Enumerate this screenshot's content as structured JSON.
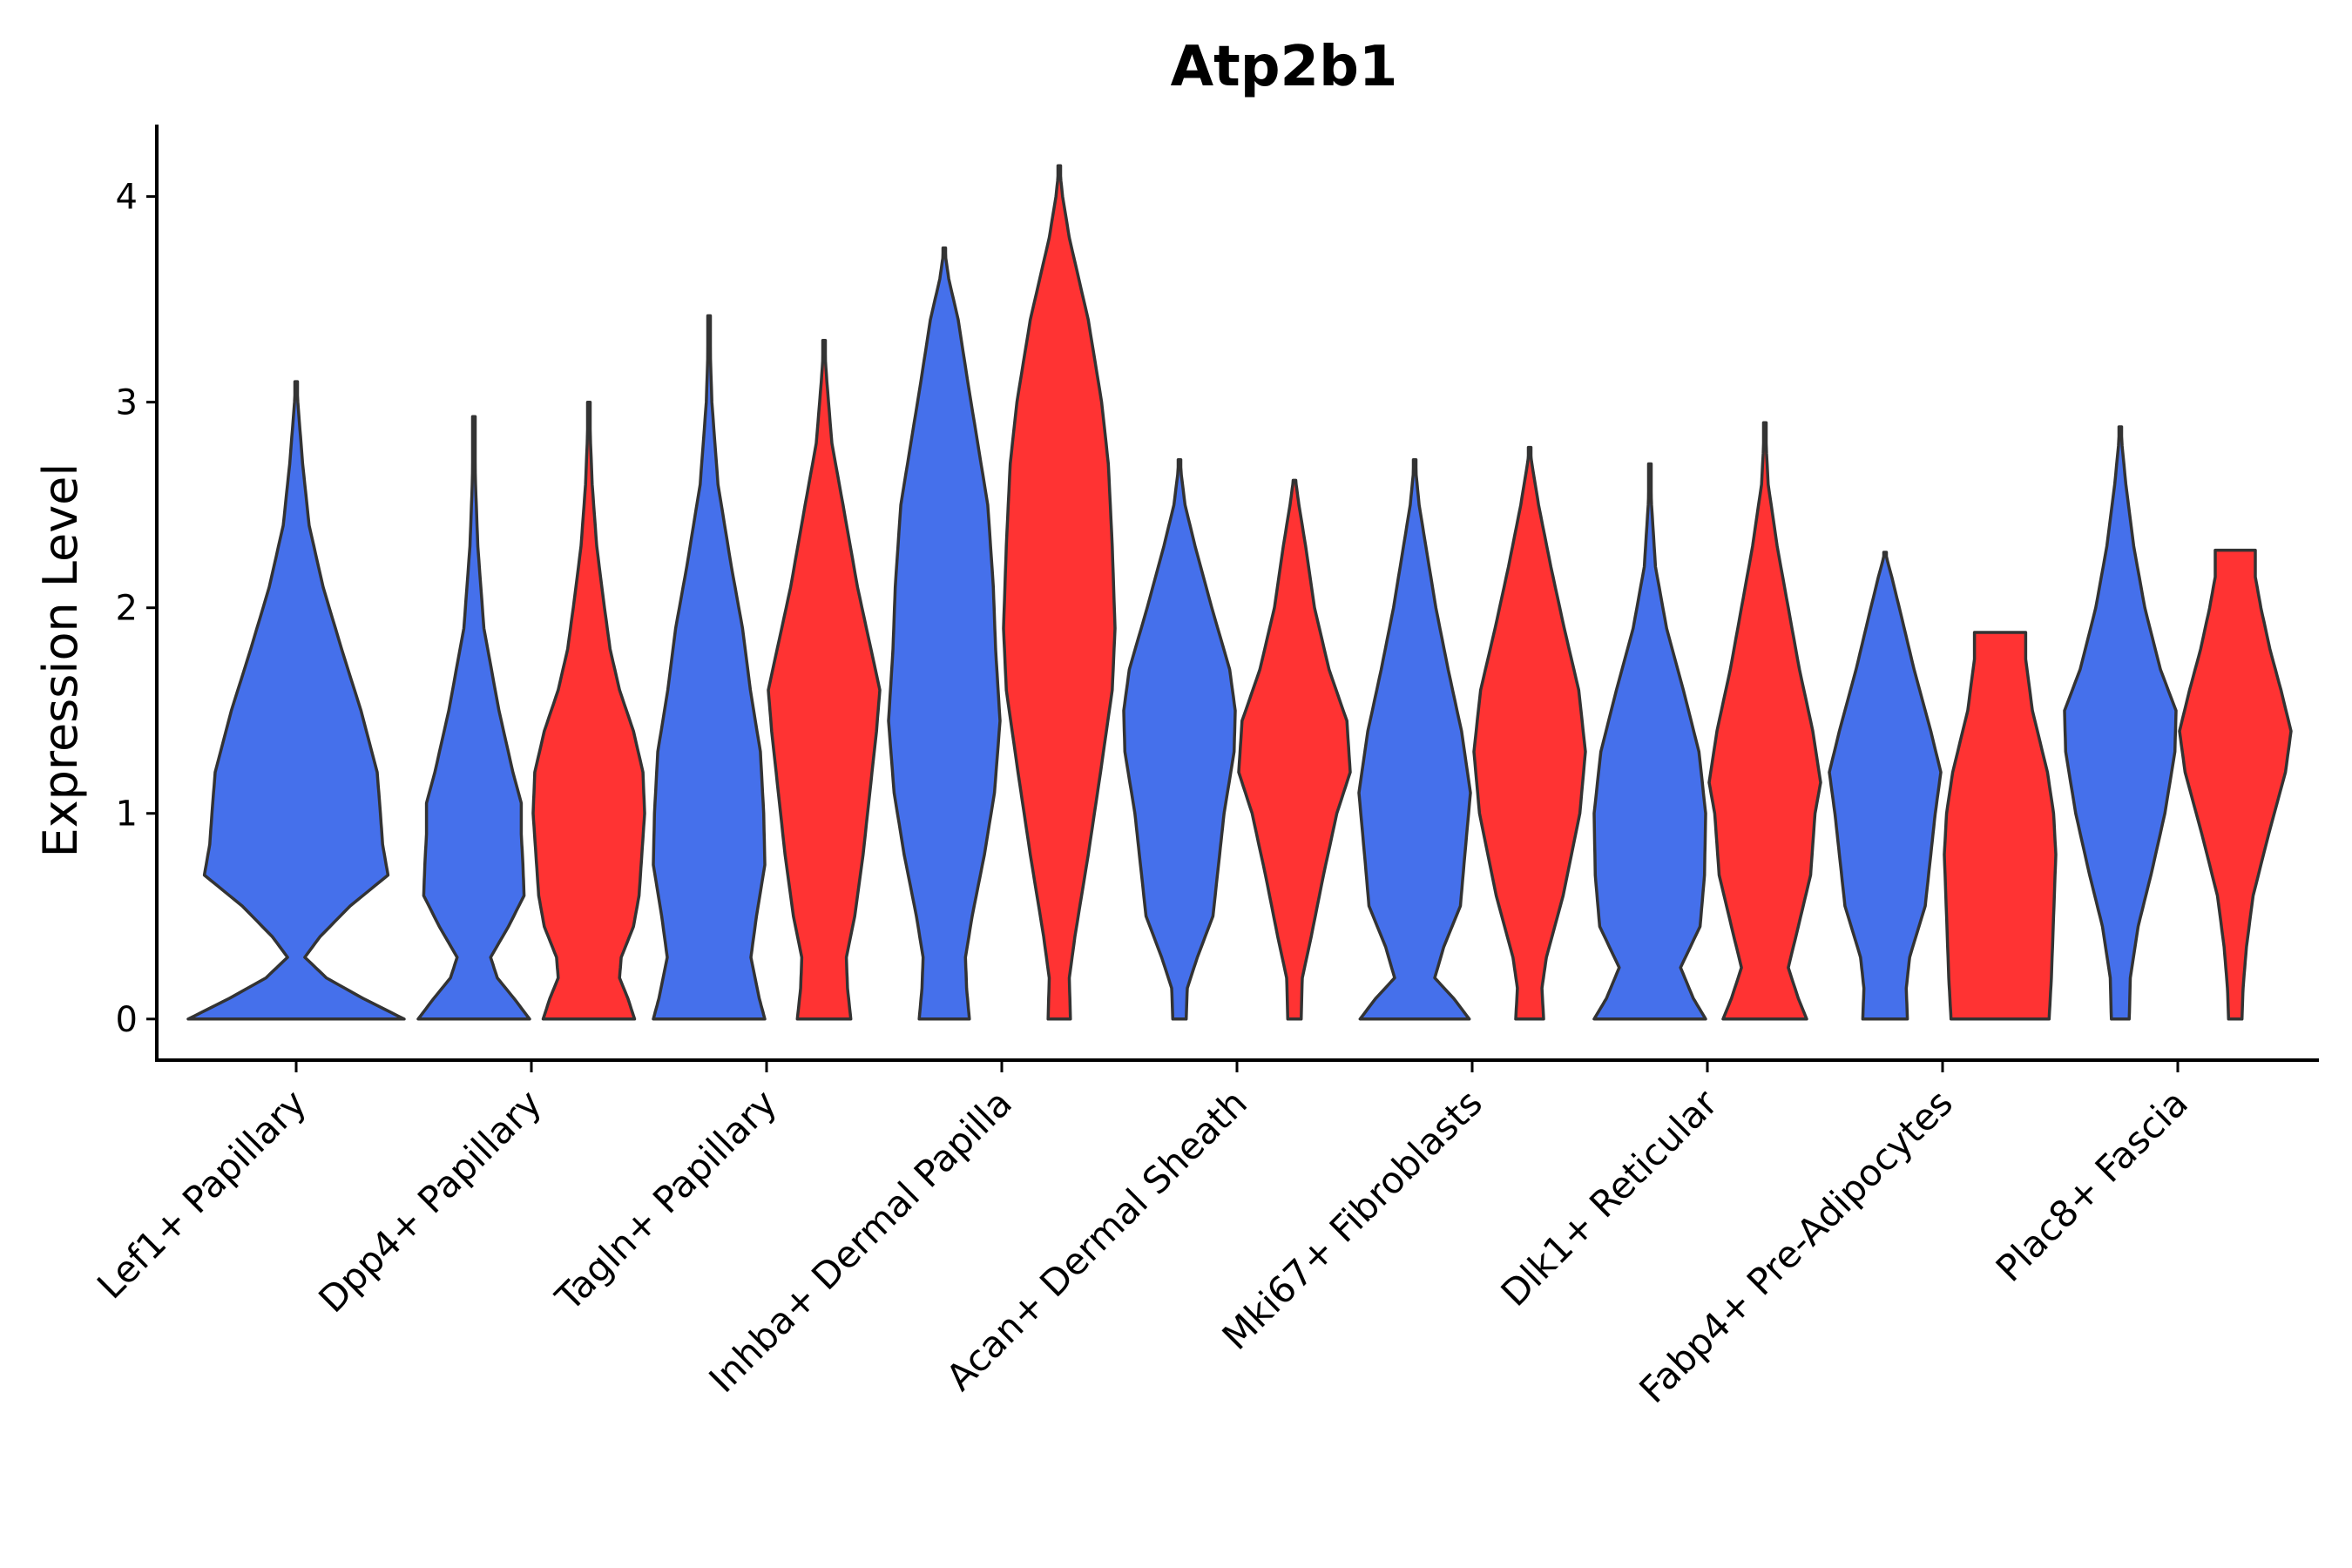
{
  "chart_data": {
    "type": "violin",
    "title": "Atp2b1",
    "xlabel": "",
    "ylabel": "Expression Level",
    "ylim": [
      -0.2,
      4.35
    ],
    "yticks": [
      0,
      1,
      2,
      3,
      4
    ],
    "grid": false,
    "legend": "none",
    "colors": {
      "group_a": "#4570EB",
      "group_b": "#FF3333",
      "outline": "#333333"
    },
    "categories": [
      "Lef1+ Papillary",
      "Dpp4+ Papillary",
      "Tagln+ Papillary",
      "Inhba+ Dermal Papilla",
      "Acan+ Dermal Sheath",
      "Mki67+ Fibroblasts",
      "Dlk1+ Reticular",
      "Fabp4+ Pre-Adipocytes",
      "Plac8+ Fascia"
    ],
    "violins": [
      {
        "category": "Lef1+ Papillary",
        "group": "group_a",
        "max": 3.1,
        "profile": [
          [
            0,
            1.0
          ],
          [
            0.1,
            0.62
          ],
          [
            0.2,
            0.28
          ],
          [
            0.3,
            0.08
          ],
          [
            0.4,
            0.22
          ],
          [
            0.55,
            0.5
          ],
          [
            0.7,
            0.85
          ],
          [
            0.85,
            0.8
          ],
          [
            1.0,
            0.78
          ],
          [
            1.2,
            0.75
          ],
          [
            1.5,
            0.6
          ],
          [
            1.8,
            0.42
          ],
          [
            2.1,
            0.25
          ],
          [
            2.4,
            0.12
          ],
          [
            2.7,
            0.06
          ],
          [
            2.9,
            0.03
          ],
          [
            3.1,
            0.0
          ]
        ]
      },
      {
        "category": "Dpp4+ Papillary",
        "group": "group_a",
        "max": 2.93,
        "profile": [
          [
            0,
            1.0
          ],
          [
            0.1,
            0.72
          ],
          [
            0.2,
            0.42
          ],
          [
            0.3,
            0.3
          ],
          [
            0.45,
            0.62
          ],
          [
            0.6,
            0.9
          ],
          [
            0.75,
            0.88
          ],
          [
            0.9,
            0.85
          ],
          [
            1.05,
            0.85
          ],
          [
            1.2,
            0.7
          ],
          [
            1.5,
            0.45
          ],
          [
            1.9,
            0.18
          ],
          [
            2.3,
            0.07
          ],
          [
            2.6,
            0.03
          ],
          [
            2.93,
            0.0
          ]
        ]
      },
      {
        "category": "Dpp4+ Papillary",
        "group": "group_b",
        "max": 3.0,
        "profile": [
          [
            0,
            0.82
          ],
          [
            0.1,
            0.7
          ],
          [
            0.2,
            0.55
          ],
          [
            0.3,
            0.58
          ],
          [
            0.45,
            0.8
          ],
          [
            0.6,
            0.9
          ],
          [
            0.8,
            0.95
          ],
          [
            1.0,
            1.0
          ],
          [
            1.2,
            0.97
          ],
          [
            1.4,
            0.8
          ],
          [
            1.6,
            0.55
          ],
          [
            1.8,
            0.38
          ],
          [
            2.0,
            0.28
          ],
          [
            2.3,
            0.14
          ],
          [
            2.6,
            0.06
          ],
          [
            3.0,
            0.0
          ]
        ]
      },
      {
        "category": "Tagln+ Papillary",
        "group": "group_a",
        "max": 3.42,
        "profile": [
          [
            0,
            1.0
          ],
          [
            0.1,
            0.9
          ],
          [
            0.3,
            0.75
          ],
          [
            0.5,
            0.85
          ],
          [
            0.75,
            1.0
          ],
          [
            1.0,
            0.98
          ],
          [
            1.3,
            0.92
          ],
          [
            1.6,
            0.74
          ],
          [
            1.9,
            0.6
          ],
          [
            2.2,
            0.4
          ],
          [
            2.6,
            0.16
          ],
          [
            3.0,
            0.05
          ],
          [
            3.42,
            0.0
          ]
        ]
      },
      {
        "category": "Tagln+ Papillary",
        "group": "group_b",
        "max": 3.3,
        "profile": [
          [
            0,
            0.48
          ],
          [
            0.15,
            0.42
          ],
          [
            0.3,
            0.4
          ],
          [
            0.5,
            0.55
          ],
          [
            0.8,
            0.7
          ],
          [
            1.1,
            0.82
          ],
          [
            1.4,
            0.94
          ],
          [
            1.6,
            1.0
          ],
          [
            1.8,
            0.84
          ],
          [
            2.1,
            0.6
          ],
          [
            2.5,
            0.34
          ],
          [
            2.8,
            0.14
          ],
          [
            3.1,
            0.05
          ],
          [
            3.3,
            0.0
          ]
        ]
      },
      {
        "category": "Inhba+ Dermal Papilla",
        "group": "group_a",
        "max": 3.75,
        "profile": [
          [
            0,
            0.45
          ],
          [
            0.15,
            0.4
          ],
          [
            0.3,
            0.38
          ],
          [
            0.5,
            0.5
          ],
          [
            0.8,
            0.72
          ],
          [
            1.1,
            0.9
          ],
          [
            1.45,
            1.0
          ],
          [
            1.8,
            0.92
          ],
          [
            2.1,
            0.88
          ],
          [
            2.5,
            0.78
          ],
          [
            2.8,
            0.6
          ],
          [
            3.1,
            0.42
          ],
          [
            3.4,
            0.25
          ],
          [
            3.6,
            0.08
          ],
          [
            3.75,
            0.0
          ]
        ]
      },
      {
        "category": "Inhba+ Dermal Papilla",
        "group": "group_b",
        "max": 4.15,
        "profile": [
          [
            0,
            0.2
          ],
          [
            0.2,
            0.18
          ],
          [
            0.4,
            0.28
          ],
          [
            0.8,
            0.52
          ],
          [
            1.2,
            0.74
          ],
          [
            1.6,
            0.95
          ],
          [
            1.9,
            1.0
          ],
          [
            2.3,
            0.95
          ],
          [
            2.7,
            0.88
          ],
          [
            3.0,
            0.76
          ],
          [
            3.4,
            0.52
          ],
          [
            3.8,
            0.18
          ],
          [
            4.0,
            0.06
          ],
          [
            4.15,
            0.0
          ]
        ]
      },
      {
        "category": "Acan+ Dermal Sheath",
        "group": "group_a",
        "max": 2.72,
        "profile": [
          [
            0,
            0.12
          ],
          [
            0.15,
            0.14
          ],
          [
            0.3,
            0.32
          ],
          [
            0.5,
            0.6
          ],
          [
            0.8,
            0.72
          ],
          [
            1.0,
            0.8
          ],
          [
            1.3,
            0.98
          ],
          [
            1.5,
            1.0
          ],
          [
            1.7,
            0.9
          ],
          [
            2.0,
            0.58
          ],
          [
            2.3,
            0.28
          ],
          [
            2.5,
            0.1
          ],
          [
            2.72,
            0.0
          ]
        ]
      },
      {
        "category": "Acan+ Dermal Sheath",
        "group": "group_b",
        "max": 2.62,
        "profile": [
          [
            0,
            0.12
          ],
          [
            0.2,
            0.14
          ],
          [
            0.4,
            0.3
          ],
          [
            0.7,
            0.52
          ],
          [
            1.0,
            0.76
          ],
          [
            1.2,
            1.0
          ],
          [
            1.45,
            0.94
          ],
          [
            1.7,
            0.62
          ],
          [
            2.0,
            0.36
          ],
          [
            2.3,
            0.2
          ],
          [
            2.5,
            0.08
          ],
          [
            2.62,
            0.02
          ]
        ]
      },
      {
        "category": "Mki67+ Fibroblasts",
        "group": "group_a",
        "max": 2.72,
        "profile": [
          [
            0,
            0.98
          ],
          [
            0.1,
            0.7
          ],
          [
            0.2,
            0.36
          ],
          [
            0.35,
            0.52
          ],
          [
            0.55,
            0.82
          ],
          [
            0.8,
            0.9
          ],
          [
            1.1,
            1.0
          ],
          [
            1.4,
            0.84
          ],
          [
            1.7,
            0.6
          ],
          [
            2.0,
            0.38
          ],
          [
            2.3,
            0.2
          ],
          [
            2.5,
            0.08
          ],
          [
            2.72,
            0.0
          ]
        ]
      },
      {
        "category": "Mki67+ Fibroblasts",
        "group": "group_b",
        "max": 2.78,
        "profile": [
          [
            0,
            0.25
          ],
          [
            0.15,
            0.22
          ],
          [
            0.3,
            0.3
          ],
          [
            0.6,
            0.6
          ],
          [
            1.0,
            0.9
          ],
          [
            1.3,
            1.0
          ],
          [
            1.6,
            0.88
          ],
          [
            1.9,
            0.62
          ],
          [
            2.2,
            0.38
          ],
          [
            2.5,
            0.16
          ],
          [
            2.7,
            0.04
          ],
          [
            2.78,
            0.0
          ]
        ]
      },
      {
        "category": "Dlk1+ Reticular",
        "group": "group_a",
        "max": 2.7,
        "profile": [
          [
            0,
            1.0
          ],
          [
            0.1,
            0.78
          ],
          [
            0.25,
            0.55
          ],
          [
            0.45,
            0.9
          ],
          [
            0.7,
            0.98
          ],
          [
            1.0,
            1.0
          ],
          [
            1.3,
            0.88
          ],
          [
            1.6,
            0.6
          ],
          [
            1.9,
            0.3
          ],
          [
            2.2,
            0.1
          ],
          [
            2.5,
            0.03
          ],
          [
            2.7,
            0.0
          ]
        ]
      },
      {
        "category": "Dlk1+ Reticular",
        "group": "group_b",
        "max": 2.9,
        "profile": [
          [
            0,
            0.75
          ],
          [
            0.1,
            0.6
          ],
          [
            0.25,
            0.42
          ],
          [
            0.45,
            0.6
          ],
          [
            0.7,
            0.82
          ],
          [
            1.0,
            0.9
          ],
          [
            1.15,
            1.0
          ],
          [
            1.4,
            0.86
          ],
          [
            1.7,
            0.62
          ],
          [
            2.0,
            0.42
          ],
          [
            2.3,
            0.22
          ],
          [
            2.6,
            0.06
          ],
          [
            2.9,
            0.0
          ]
        ]
      },
      {
        "category": "Fabp4+ Pre-Adipocytes",
        "group": "group_a",
        "max": 2.27,
        "profile": [
          [
            0,
            0.4
          ],
          [
            0.15,
            0.38
          ],
          [
            0.3,
            0.44
          ],
          [
            0.55,
            0.72
          ],
          [
            0.8,
            0.82
          ],
          [
            1.0,
            0.9
          ],
          [
            1.2,
            1.0
          ],
          [
            1.4,
            0.82
          ],
          [
            1.7,
            0.52
          ],
          [
            1.95,
            0.3
          ],
          [
            2.15,
            0.12
          ],
          [
            2.27,
            0.0
          ]
        ]
      },
      {
        "category": "Fabp4+ Pre-Adipocytes",
        "group": "group_b",
        "max": 1.88,
        "profile": [
          [
            0,
            0.88
          ],
          [
            0.2,
            0.92
          ],
          [
            0.5,
            0.96
          ],
          [
            0.8,
            1.0
          ],
          [
            1.0,
            0.96
          ],
          [
            1.2,
            0.85
          ],
          [
            1.5,
            0.58
          ],
          [
            1.75,
            0.46
          ],
          [
            1.88,
            0.46
          ]
        ]
      },
      {
        "category": "Plac8+ Fascia",
        "group": "group_a",
        "max": 2.88,
        "profile": [
          [
            0,
            0.16
          ],
          [
            0.2,
            0.18
          ],
          [
            0.45,
            0.32
          ],
          [
            0.7,
            0.55
          ],
          [
            1.0,
            0.8
          ],
          [
            1.3,
            0.98
          ],
          [
            1.5,
            1.0
          ],
          [
            1.7,
            0.72
          ],
          [
            2.0,
            0.44
          ],
          [
            2.3,
            0.24
          ],
          [
            2.6,
            0.1
          ],
          [
            2.88,
            0.0
          ]
        ]
      },
      {
        "category": "Plac8+ Fascia",
        "group": "group_b",
        "max": 2.28,
        "profile": [
          [
            0,
            0.12
          ],
          [
            0.15,
            0.14
          ],
          [
            0.35,
            0.2
          ],
          [
            0.6,
            0.32
          ],
          [
            0.9,
            0.6
          ],
          [
            1.2,
            0.9
          ],
          [
            1.4,
            1.0
          ],
          [
            1.6,
            0.82
          ],
          [
            1.8,
            0.62
          ],
          [
            2.0,
            0.46
          ],
          [
            2.15,
            0.36
          ],
          [
            2.28,
            0.36
          ]
        ]
      }
    ]
  }
}
